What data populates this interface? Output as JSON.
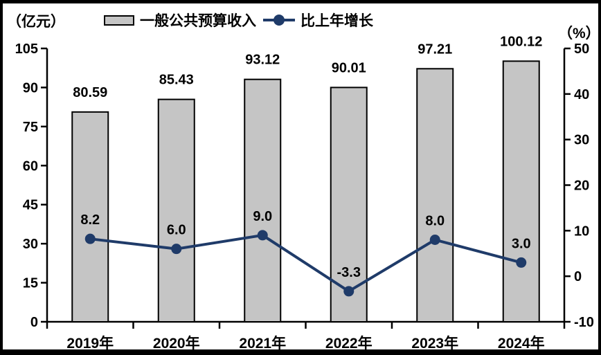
{
  "header": {
    "left_axis_unit": "（亿元）",
    "right_axis_unit": "（%）",
    "legend": [
      {
        "label": "一般公共预算收入",
        "marker": "bar-swatch",
        "color": "#c5c5c5"
      },
      {
        "label": "比上年增长",
        "marker": "line-dot-swatch",
        "color": "#1f3b69"
      }
    ]
  },
  "chart_data": {
    "type": "bar+line combo",
    "categories": [
      "2019年",
      "2020年",
      "2021年",
      "2022年",
      "2023年",
      "2024年"
    ],
    "series": [
      {
        "name": "一般公共预算收入",
        "type": "bar",
        "axis": "left",
        "values": [
          80.59,
          85.43,
          93.12,
          90.01,
          97.21,
          100.12
        ],
        "value_labels": [
          "80.59",
          "85.43",
          "93.12",
          "90.01",
          "97.21",
          "100.12"
        ],
        "fill_color": "#c5c5c5",
        "border_color": "#000000"
      },
      {
        "name": "比上年增长",
        "type": "line",
        "axis": "right",
        "values": [
          8.2,
          6.0,
          9.0,
          -3.3,
          8.0,
          3.0
        ],
        "value_labels": [
          "8.2",
          "6.0",
          "9.0",
          "-3.3",
          "8.0",
          "3.0"
        ],
        "line_color": "#1f3b69",
        "marker": "circle"
      }
    ],
    "left_axis": {
      "unit": "（亿元）",
      "min": 0,
      "max": 105,
      "ticks": [
        "0",
        "15",
        "30",
        "45",
        "60",
        "75",
        "90",
        "105"
      ]
    },
    "right_axis": {
      "unit": "（%）",
      "min": -10,
      "max": 50,
      "ticks": [
        "-10",
        "0",
        "10",
        "20",
        "30",
        "40",
        "50"
      ]
    },
    "grid": false,
    "legend_position": "top",
    "text_color": "#000000",
    "axis_color": "#000000"
  }
}
